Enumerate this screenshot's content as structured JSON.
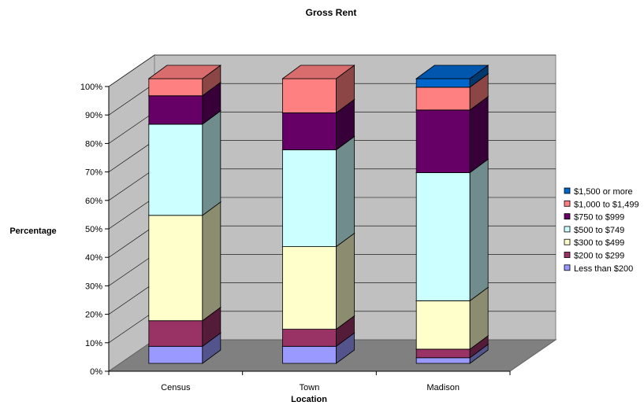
{
  "chart_data": {
    "type": "bar",
    "stacked": true,
    "percent_stacked": true,
    "three_d": true,
    "title": "Gross Rent",
    "xlabel": "Location",
    "ylabel": "Percentage",
    "categories": [
      "Census",
      "Town",
      "Madison"
    ],
    "ylim": [
      0,
      100
    ],
    "y_ticks": [
      "0%",
      "10%",
      "20%",
      "30%",
      "40%",
      "50%",
      "60%",
      "70%",
      "80%",
      "90%",
      "100%"
    ],
    "grid": true,
    "legend_position": "right",
    "series": [
      {
        "name": "Less than $200",
        "color": "#9999ff",
        "values": [
          6,
          6,
          2
        ]
      },
      {
        "name": "$200 to $299",
        "color": "#993366",
        "values": [
          9,
          6,
          3
        ]
      },
      {
        "name": "$300 to $499",
        "color": "#ffffcc",
        "values": [
          37,
          29,
          17
        ]
      },
      {
        "name": "$500 to $749",
        "color": "#ccffff",
        "values": [
          32,
          34,
          45
        ]
      },
      {
        "name": "$750 to $999",
        "color": "#660066",
        "values": [
          10,
          13,
          22
        ]
      },
      {
        "name": "$1,000 to $1,499",
        "color": "#ff8080",
        "values": [
          6,
          12,
          8
        ]
      },
      {
        "name": "$1,500 or more",
        "color": "#0066cc",
        "values": [
          0,
          0,
          3
        ]
      }
    ]
  }
}
